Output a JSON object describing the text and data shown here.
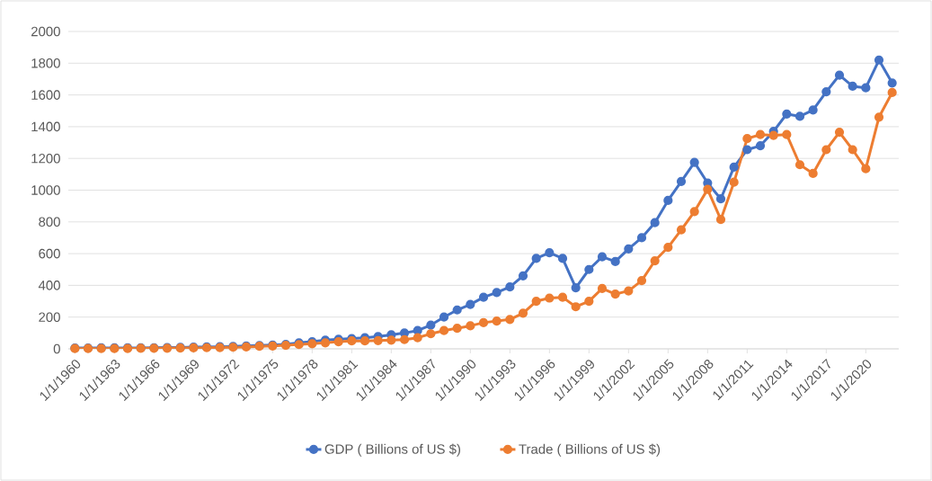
{
  "chart_data": {
    "type": "line",
    "categories": [
      "1/1/1960",
      null,
      null,
      "1/1/1963",
      null,
      null,
      "1/1/1966",
      null,
      null,
      "1/1/1969",
      null,
      null,
      "1/1/1972",
      null,
      null,
      "1/1/1975",
      null,
      null,
      "1/1/1978",
      null,
      null,
      "1/1/1981",
      null,
      null,
      "1/1/1984",
      null,
      null,
      "1/1/1987",
      null,
      null,
      "1/1/1990",
      null,
      null,
      "1/1/1993",
      null,
      null,
      "1/1/1996",
      null,
      null,
      "1/1/1999",
      null,
      null,
      "1/1/2002",
      null,
      null,
      "1/1/2005",
      null,
      null,
      "1/1/2008",
      null,
      null,
      "1/1/2011",
      null,
      null,
      "1/1/2014",
      null,
      null,
      "1/1/2017",
      null,
      null,
      "1/1/2020",
      null,
      null
    ],
    "series": [
      {
        "name": "GDP ( Billions of US $)",
        "color": "#4472c4",
        "values": [
          5,
          5,
          6,
          6,
          6,
          6,
          7,
          8,
          9,
          11,
          12,
          13,
          15,
          18,
          21,
          24,
          28,
          38,
          45,
          55,
          60,
          65,
          70,
          78,
          88,
          100,
          115,
          150,
          200,
          245,
          280,
          325,
          355,
          390,
          460,
          570,
          605,
          570,
          385,
          500,
          580,
          550,
          630,
          700,
          795,
          935,
          1055,
          1175,
          1045,
          945,
          1145,
          1255,
          1280,
          1370,
          1480,
          1465,
          1505,
          1620,
          1725,
          1655,
          1645,
          1820,
          1675
        ]
      },
      {
        "name": "Trade ( Billions of US $)",
        "color": "#ed7d31",
        "values": [
          2,
          2,
          2,
          2,
          2,
          3,
          4,
          4,
          5,
          6,
          7,
          8,
          10,
          12,
          16,
          18,
          22,
          27,
          32,
          38,
          45,
          50,
          50,
          52,
          55,
          58,
          70,
          95,
          115,
          130,
          145,
          165,
          175,
          185,
          225,
          300,
          320,
          325,
          265,
          300,
          380,
          345,
          365,
          430,
          555,
          640,
          750,
          865,
          1005,
          815,
          1050,
          1325,
          1350,
          1345,
          1350,
          1160,
          1105,
          1255,
          1365,
          1255,
          1135,
          1460,
          1615
        ]
      }
    ],
    "ylim": [
      0,
      2000
    ],
    "yticks": [
      0,
      200,
      400,
      600,
      800,
      1000,
      1200,
      1400,
      1600,
      1800,
      2000
    ],
    "grid": "y",
    "legend": "bottom",
    "marker": "circle",
    "line_style": "solid"
  }
}
